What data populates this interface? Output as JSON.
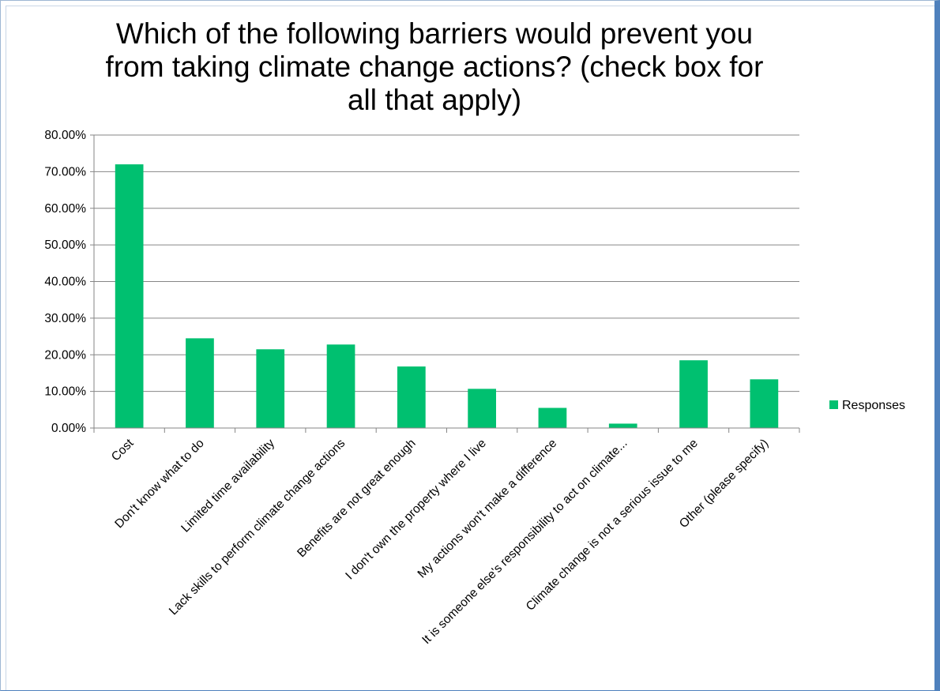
{
  "chart_data": {
    "type": "bar",
    "title": "Which of the following barriers would prevent you from taking climate change actions? (check box for all that apply)",
    "categories": [
      "Cost",
      "Don't know what to do",
      "Limited time availability",
      "Lack skills to perform climate change actions",
      "Benefits are not great enough",
      "I don't own the property where I live",
      "My actions won't make a difference",
      "It is someone else's responsibility to act on climate...",
      "Climate change is not a serious issue to me",
      "Other (please specify)"
    ],
    "series": [
      {
        "name": "Responses",
        "values": [
          0.72,
          0.245,
          0.215,
          0.228,
          0.168,
          0.107,
          0.055,
          0.012,
          0.185,
          0.133
        ],
        "color": "#00c070"
      }
    ],
    "ylim": [
      0,
      0.8
    ],
    "yticks": [
      "0.00%",
      "10.00%",
      "20.00%",
      "30.00%",
      "40.00%",
      "50.00%",
      "60.00%",
      "70.00%",
      "80.00%"
    ],
    "grid": true,
    "legend": "right",
    "xlabel": "",
    "ylabel": ""
  }
}
